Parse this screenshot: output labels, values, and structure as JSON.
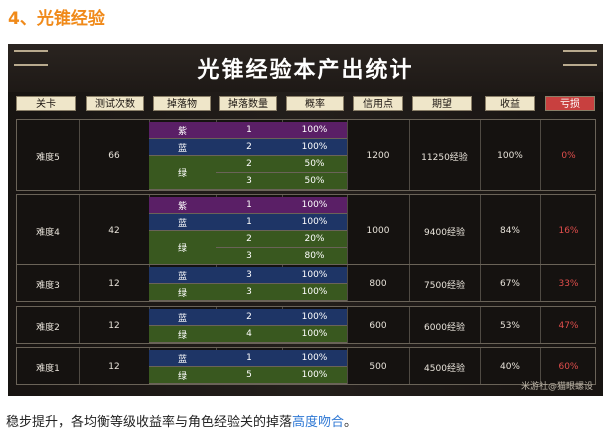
{
  "heading": "4、光锥经验",
  "banner": {
    "title": "光锥经验本产出统计",
    "watermark": "米游社@猫眼螺设"
  },
  "columns": [
    "关卡",
    "测试次数",
    "掉落物",
    "掉落数量",
    "概率",
    "信用点",
    "期望",
    "收益",
    "亏损"
  ],
  "rows": [
    {
      "level": "难度5",
      "tests": "66",
      "credits": "1200",
      "expect": "11250经验",
      "yield": "100%",
      "loss": "0%",
      "drops": [
        {
          "item": "紫",
          "color": "purple",
          "qty": "1",
          "prob": "100%"
        },
        {
          "item": "蓝",
          "color": "blue",
          "qty": "2",
          "prob": "100%"
        },
        {
          "item": "绿",
          "color": "green",
          "qty": "2",
          "prob": "50%"
        },
        {
          "item": "",
          "color": "green",
          "qty": "3",
          "prob": "50%"
        }
      ]
    },
    {
      "level": "难度4",
      "tests": "42",
      "credits": "1000",
      "expect": "9400经验",
      "yield": "84%",
      "loss": "16%",
      "drops": [
        {
          "item": "紫",
          "color": "purple",
          "qty": "1",
          "prob": "100%"
        },
        {
          "item": "蓝",
          "color": "blue",
          "qty": "1",
          "prob": "100%"
        },
        {
          "item": "绿",
          "color": "green",
          "qty": "2",
          "prob": "20%"
        },
        {
          "item": "",
          "color": "green",
          "qty": "3",
          "prob": "80%"
        }
      ]
    },
    {
      "level": "难度3",
      "tests": "12",
      "credits": "800",
      "expect": "7500经验",
      "yield": "67%",
      "loss": "33%",
      "drops": [
        {
          "item": "蓝",
          "color": "blue",
          "qty": "3",
          "prob": "100%"
        },
        {
          "item": "绿",
          "color": "green",
          "qty": "3",
          "prob": "100%"
        }
      ]
    },
    {
      "level": "难度2",
      "tests": "12",
      "credits": "600",
      "expect": "6000经验",
      "yield": "53%",
      "loss": "47%",
      "drops": [
        {
          "item": "蓝",
          "color": "blue",
          "qty": "2",
          "prob": "100%"
        },
        {
          "item": "绿",
          "color": "green",
          "qty": "4",
          "prob": "100%"
        }
      ]
    },
    {
      "level": "难度1",
      "tests": "12",
      "credits": "500",
      "expect": "4500经验",
      "yield": "40%",
      "loss": "60%",
      "drops": [
        {
          "item": "蓝",
          "color": "blue",
          "qty": "1",
          "prob": "100%"
        },
        {
          "item": "绿",
          "color": "green",
          "qty": "5",
          "prob": "100%"
        }
      ]
    }
  ],
  "footer": {
    "text": "稳步提升，各均衡等级收益率与角色经验关的掉落",
    "link": "高度吻合",
    "end": "。"
  },
  "colors": {
    "heading": "#f08a1a",
    "purple": "#5a1f66",
    "blue": "#1e3566",
    "green": "#39581f",
    "loss": "#e24e4c",
    "header_bg": "#efe6c9",
    "link": "#2f78d4"
  }
}
